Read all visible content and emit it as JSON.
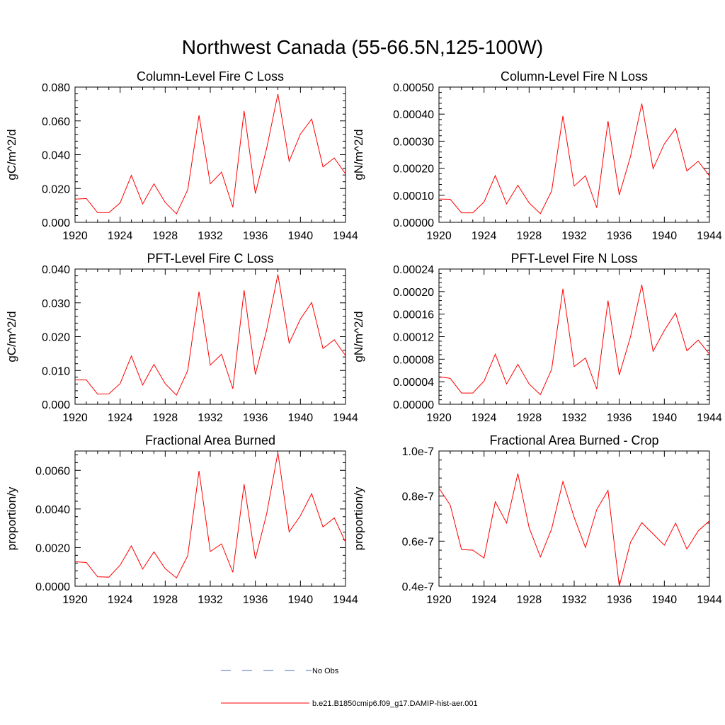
{
  "figure": {
    "title": "Northwest Canada (55-66.5N,125-100W)",
    "series_color": "#ff0000",
    "obs_color": "#4a6fb5"
  },
  "legend": {
    "items": [
      {
        "label": "No Obs",
        "style": "dashed",
        "color": "#4a6fb5"
      },
      {
        "label": "b.e21.B1850cmip6.f09_g17.DAMIP-hist-aer.001",
        "style": "solid",
        "color": "#ff0000"
      }
    ]
  },
  "chart_data": [
    {
      "type": "line",
      "title": "Column-Level Fire C Loss",
      "ylabel": "gC/m^2/d",
      "xlim": [
        1920,
        1944
      ],
      "ylim": [
        0,
        0.08
      ],
      "xticks": [
        1920,
        1924,
        1928,
        1932,
        1936,
        1940,
        1944
      ],
      "xtick_labels": [
        "1920",
        "1924",
        "1928",
        "1932",
        "1936",
        "1940",
        "1944"
      ],
      "yticks": [
        0,
        0.02,
        0.04,
        0.06,
        0.08
      ],
      "ytick_labels": [
        "0.000",
        "0.020",
        "0.040",
        "0.060",
        "0.080"
      ],
      "grid": false,
      "series": [
        {
          "color": "#ff0000",
          "x": [
            1920,
            1921,
            1922,
            1923,
            1924,
            1925,
            1926,
            1927,
            1928,
            1929,
            1930,
            1931,
            1932,
            1933,
            1934,
            1935,
            1936,
            1937,
            1938,
            1939,
            1940,
            1941,
            1942,
            1943,
            1944
          ],
          "y": [
            0.0137,
            0.0141,
            0.0057,
            0.0057,
            0.0115,
            0.0278,
            0.0109,
            0.0228,
            0.0118,
            0.005,
            0.0193,
            0.0633,
            0.0228,
            0.0297,
            0.0089,
            0.0659,
            0.017,
            0.0437,
            0.0759,
            0.0361,
            0.0522,
            0.0611,
            0.0328,
            0.0381,
            0.0287
          ]
        }
      ]
    },
    {
      "type": "line",
      "title": "Column-Level Fire N Loss",
      "ylabel": "gN/m^2/d",
      "xlim": [
        1920,
        1944
      ],
      "ylim": [
        0,
        0.0005
      ],
      "xticks": [
        1920,
        1924,
        1928,
        1932,
        1936,
        1940,
        1944
      ],
      "xtick_labels": [
        "1920",
        "1924",
        "1928",
        "1932",
        "1936",
        "1940",
        "1944"
      ],
      "yticks": [
        0,
        0.0001,
        0.0002,
        0.0003,
        0.0004,
        0.0005
      ],
      "ytick_labels": [
        "0.00000",
        "0.00010",
        "0.00020",
        "0.00030",
        "0.00040",
        "0.00050"
      ],
      "grid": false,
      "series": [
        {
          "color": "#ff0000",
          "x": [
            1920,
            1921,
            1922,
            1923,
            1924,
            1925,
            1926,
            1927,
            1928,
            1929,
            1930,
            1931,
            1932,
            1933,
            1934,
            1935,
            1936,
            1937,
            1938,
            1939,
            1940,
            1941,
            1942,
            1943,
            1944
          ],
          "y": [
            8.6e-05,
            8.5e-05,
            3.5e-05,
            3.5e-05,
            7.5e-05,
            0.000173,
            6.8e-05,
            0.000137,
            7.2e-05,
            3.2e-05,
            0.000116,
            0.000393,
            0.000134,
            0.000172,
            5.4e-05,
            0.000374,
            0.000101,
            0.000244,
            0.000439,
            0.000198,
            0.00029,
            0.000347,
            0.00019,
            0.000226,
            0.000172
          ]
        }
      ]
    },
    {
      "type": "line",
      "title": "PFT-Level Fire C Loss",
      "ylabel": "gC/m^2/d",
      "xlim": [
        1920,
        1944
      ],
      "ylim": [
        0,
        0.04
      ],
      "xticks": [
        1920,
        1924,
        1928,
        1932,
        1936,
        1940,
        1944
      ],
      "xtick_labels": [
        "1920",
        "1924",
        "1928",
        "1932",
        "1936",
        "1940",
        "1944"
      ],
      "yticks": [
        0,
        0.01,
        0.02,
        0.03,
        0.04
      ],
      "ytick_labels": [
        "0.000",
        "0.010",
        "0.020",
        "0.030",
        "0.040"
      ],
      "grid": false,
      "series": [
        {
          "color": "#ff0000",
          "x": [
            1920,
            1921,
            1922,
            1923,
            1924,
            1925,
            1926,
            1927,
            1928,
            1929,
            1930,
            1931,
            1932,
            1933,
            1934,
            1935,
            1936,
            1937,
            1938,
            1939,
            1940,
            1941,
            1942,
            1943,
            1944
          ],
          "y": [
            0.0072,
            0.0072,
            0.003,
            0.0031,
            0.0061,
            0.0143,
            0.0057,
            0.0118,
            0.0061,
            0.0027,
            0.01,
            0.0333,
            0.0116,
            0.0148,
            0.0046,
            0.0337,
            0.0088,
            0.0219,
            0.0384,
            0.0181,
            0.0252,
            0.0301,
            0.0165,
            0.0191,
            0.0144
          ]
        }
      ]
    },
    {
      "type": "line",
      "title": "PFT-Level Fire N Loss",
      "ylabel": "gN/m^2/d",
      "xlim": [
        1920,
        1944
      ],
      "ylim": [
        0,
        0.00024
      ],
      "xticks": [
        1920,
        1924,
        1928,
        1932,
        1936,
        1940,
        1944
      ],
      "xtick_labels": [
        "1920",
        "1924",
        "1928",
        "1932",
        "1936",
        "1940",
        "1944"
      ],
      "yticks": [
        0,
        4e-05,
        8e-05,
        0.00012,
        0.00016,
        0.0002,
        0.00024
      ],
      "ytick_labels": [
        "0.00000",
        "0.00004",
        "0.00008",
        "0.00012",
        "0.00016",
        "0.00020",
        "0.00024"
      ],
      "grid": false,
      "series": [
        {
          "color": "#ff0000",
          "x": [
            1920,
            1921,
            1922,
            1923,
            1924,
            1925,
            1926,
            1927,
            1928,
            1929,
            1930,
            1931,
            1932,
            1933,
            1934,
            1935,
            1936,
            1937,
            1938,
            1939,
            1940,
            1941,
            1942,
            1943,
            1944
          ],
          "y": [
            4.9e-05,
            4.6e-05,
            2e-05,
            2e-05,
            4.1e-05,
            8.9e-05,
            3.6e-05,
            7.1e-05,
            3.6e-05,
            1.7e-05,
            6.2e-05,
            0.000205,
            6.7e-05,
            8.2e-05,
            2.7e-05,
            0.000184,
            5.2e-05,
            0.00012,
            0.000212,
            9.4e-05,
            0.000131,
            0.000162,
            9.5e-05,
            0.000114,
            8.9e-05
          ]
        }
      ]
    },
    {
      "type": "line",
      "title": "Fractional Area Burned",
      "ylabel": "proportion/y",
      "xlim": [
        1920,
        1944
      ],
      "ylim": [
        0,
        0.007
      ],
      "xticks": [
        1920,
        1924,
        1928,
        1932,
        1936,
        1940,
        1944
      ],
      "xtick_labels": [
        "1920",
        "1924",
        "1928",
        "1932",
        "1936",
        "1940",
        "1944"
      ],
      "yticks": [
        0,
        0.002,
        0.004,
        0.006
      ],
      "ytick_labels": [
        "0.0000",
        "0.0020",
        "0.0040",
        "0.0060"
      ],
      "grid": false,
      "series": [
        {
          "color": "#ff0000",
          "x": [
            1920,
            1921,
            1922,
            1923,
            1924,
            1925,
            1926,
            1927,
            1928,
            1929,
            1930,
            1931,
            1932,
            1933,
            1934,
            1935,
            1936,
            1937,
            1938,
            1939,
            1940,
            1941,
            1942,
            1943,
            1944
          ],
          "y": [
            0.00127,
            0.00123,
            0.00049,
            0.00047,
            0.00109,
            0.00209,
            0.00089,
            0.00178,
            0.00091,
            0.00043,
            0.00158,
            0.00597,
            0.0018,
            0.00219,
            0.00072,
            0.00528,
            0.00142,
            0.00374,
            0.00692,
            0.00281,
            0.00365,
            0.00479,
            0.00307,
            0.00354,
            0.00228
          ]
        }
      ]
    },
    {
      "type": "line",
      "title": "Fractional Area Burned - Crop",
      "ylabel": "proportion/y",
      "xlim": [
        1920,
        1944
      ],
      "ylim": [
        4e-08,
        1e-07
      ],
      "xticks": [
        1920,
        1924,
        1928,
        1932,
        1936,
        1940,
        1944
      ],
      "xtick_labels": [
        "1920",
        "1924",
        "1928",
        "1932",
        "1936",
        "1940",
        "1944"
      ],
      "yticks": [
        4e-08,
        6e-08,
        8e-08,
        1e-07
      ],
      "ytick_labels": [
        "0.4e-7",
        "0.6e-7",
        "0.8e-7",
        "1.0e-7"
      ],
      "grid": false,
      "series": [
        {
          "color": "#ff0000",
          "x": [
            1920,
            1921,
            1922,
            1923,
            1924,
            1925,
            1926,
            1927,
            1928,
            1929,
            1930,
            1931,
            1932,
            1933,
            1934,
            1935,
            1936,
            1937,
            1938,
            1939,
            1940,
            1941,
            1942,
            1943,
            1944
          ],
          "y": [
            8.35e-08,
            7.6e-08,
            5.63e-08,
            5.6e-08,
            5.25e-08,
            7.75e-08,
            6.8e-08,
            9e-08,
            6.6e-08,
            5.3e-08,
            6.55e-08,
            8.65e-08,
            7.05e-08,
            5.72e-08,
            7.4e-08,
            8.25e-08,
            4e-08,
            5.95e-08,
            6.82e-08,
            6.32e-08,
            5.82e-08,
            6.8e-08,
            5.65e-08,
            6.45e-08,
            6.9e-08
          ]
        }
      ]
    }
  ]
}
